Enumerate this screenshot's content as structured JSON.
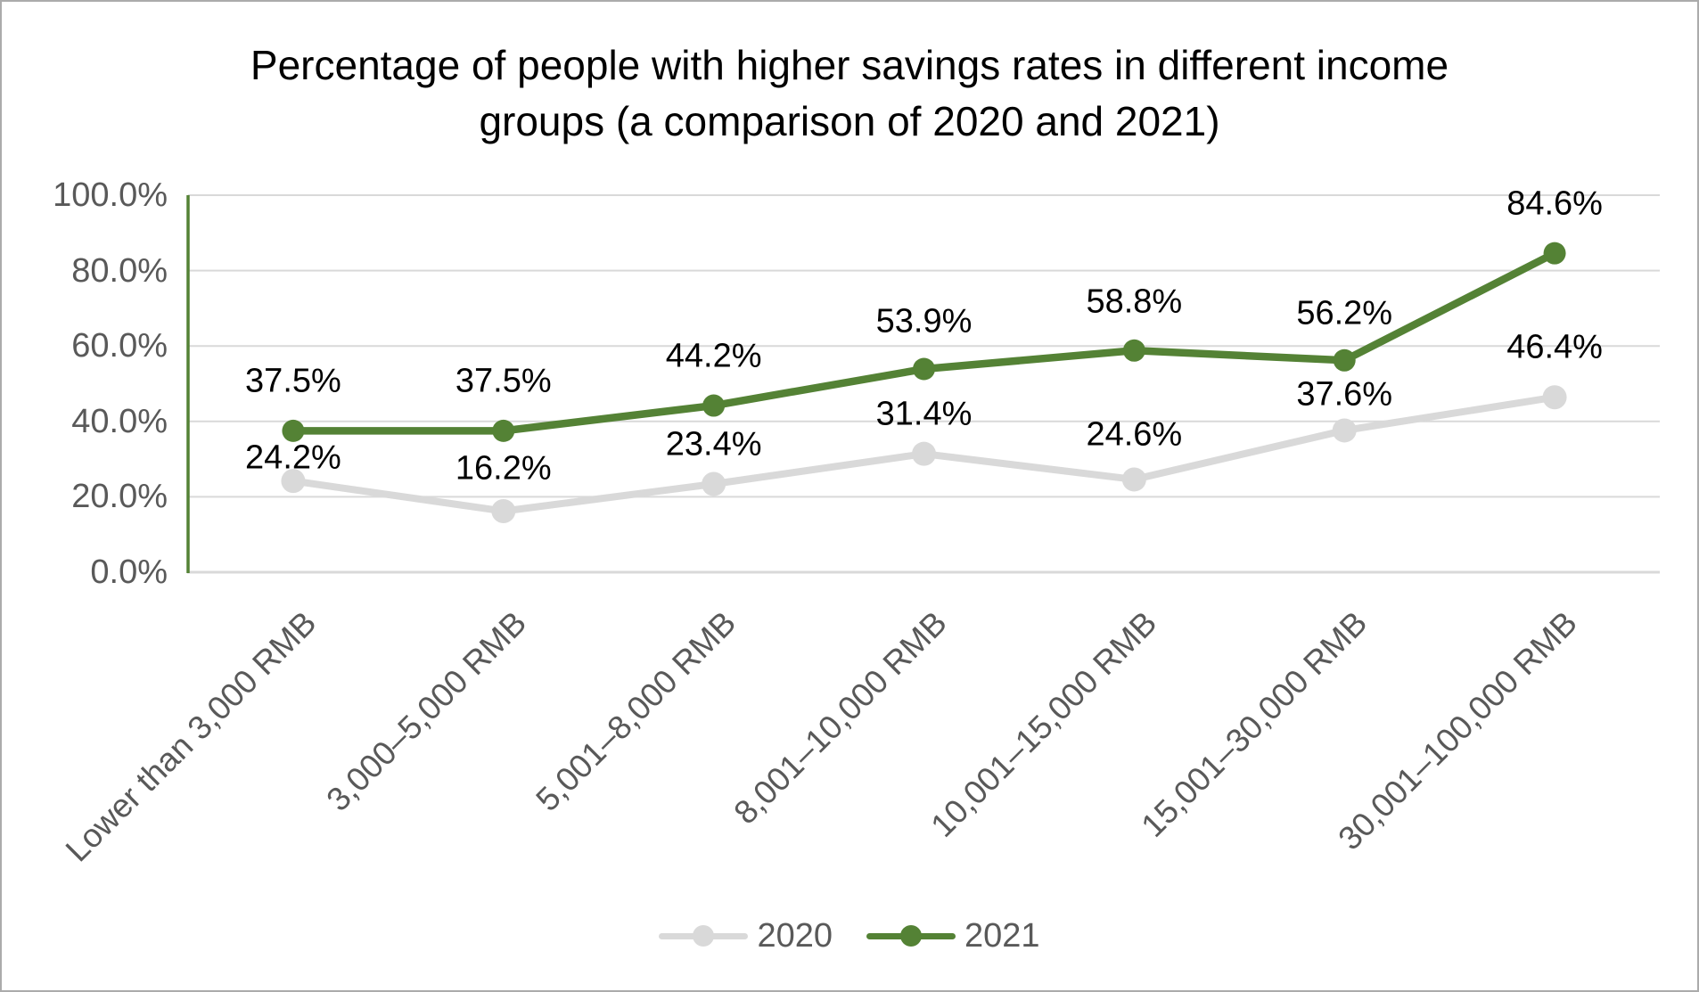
{
  "page": {
    "background": "#ffffff",
    "border_color": "#ababab"
  },
  "chart_data": {
    "type": "line",
    "title": "Percentage of people with higher savings rates in different income groups (a comparison of 2020 and 2021)",
    "title_line1": "Percentage of people with higher savings rates in different income",
    "title_line2": "groups (a comparison of 2020 and 2021)",
    "categories": [
      "Lower than 3,000 RMB",
      "3,000–5,000 RMB",
      "5,001–8,000 RMB",
      "8,001–10,000 RMB",
      "10,001–15,000 RMB",
      "15,001–30,000 RMB",
      "30,001–100,000 RMB"
    ],
    "series": [
      {
        "name": "2020",
        "color": "#d9d9d9",
        "values": [
          24.2,
          16.2,
          23.4,
          31.4,
          24.6,
          37.6,
          46.4
        ],
        "labels": [
          "24.2%",
          "16.2%",
          "23.4%",
          "31.4%",
          "24.6%",
          "37.6%",
          "46.4%"
        ]
      },
      {
        "name": "2021",
        "color": "#548235",
        "values": [
          37.5,
          37.5,
          44.2,
          53.9,
          58.8,
          56.2,
          84.6
        ],
        "labels": [
          "37.5%",
          "37.5%",
          "44.2%",
          "53.9%",
          "58.8%",
          "56.2%",
          "84.6%"
        ]
      }
    ],
    "y_axis": {
      "min": 0,
      "max": 100,
      "tick_interval": 20,
      "tick_labels": [
        "0.0%",
        "20.0%",
        "40.0%",
        "60.0%",
        "80.0%",
        "100.0%"
      ]
    },
    "grid": "horizontal",
    "legend_position": "bottom",
    "axis_text_color": "#595959",
    "gridline_color": "#d9d9d9",
    "y_axis_line_color": "#548235",
    "data_label_color": "#000000"
  }
}
